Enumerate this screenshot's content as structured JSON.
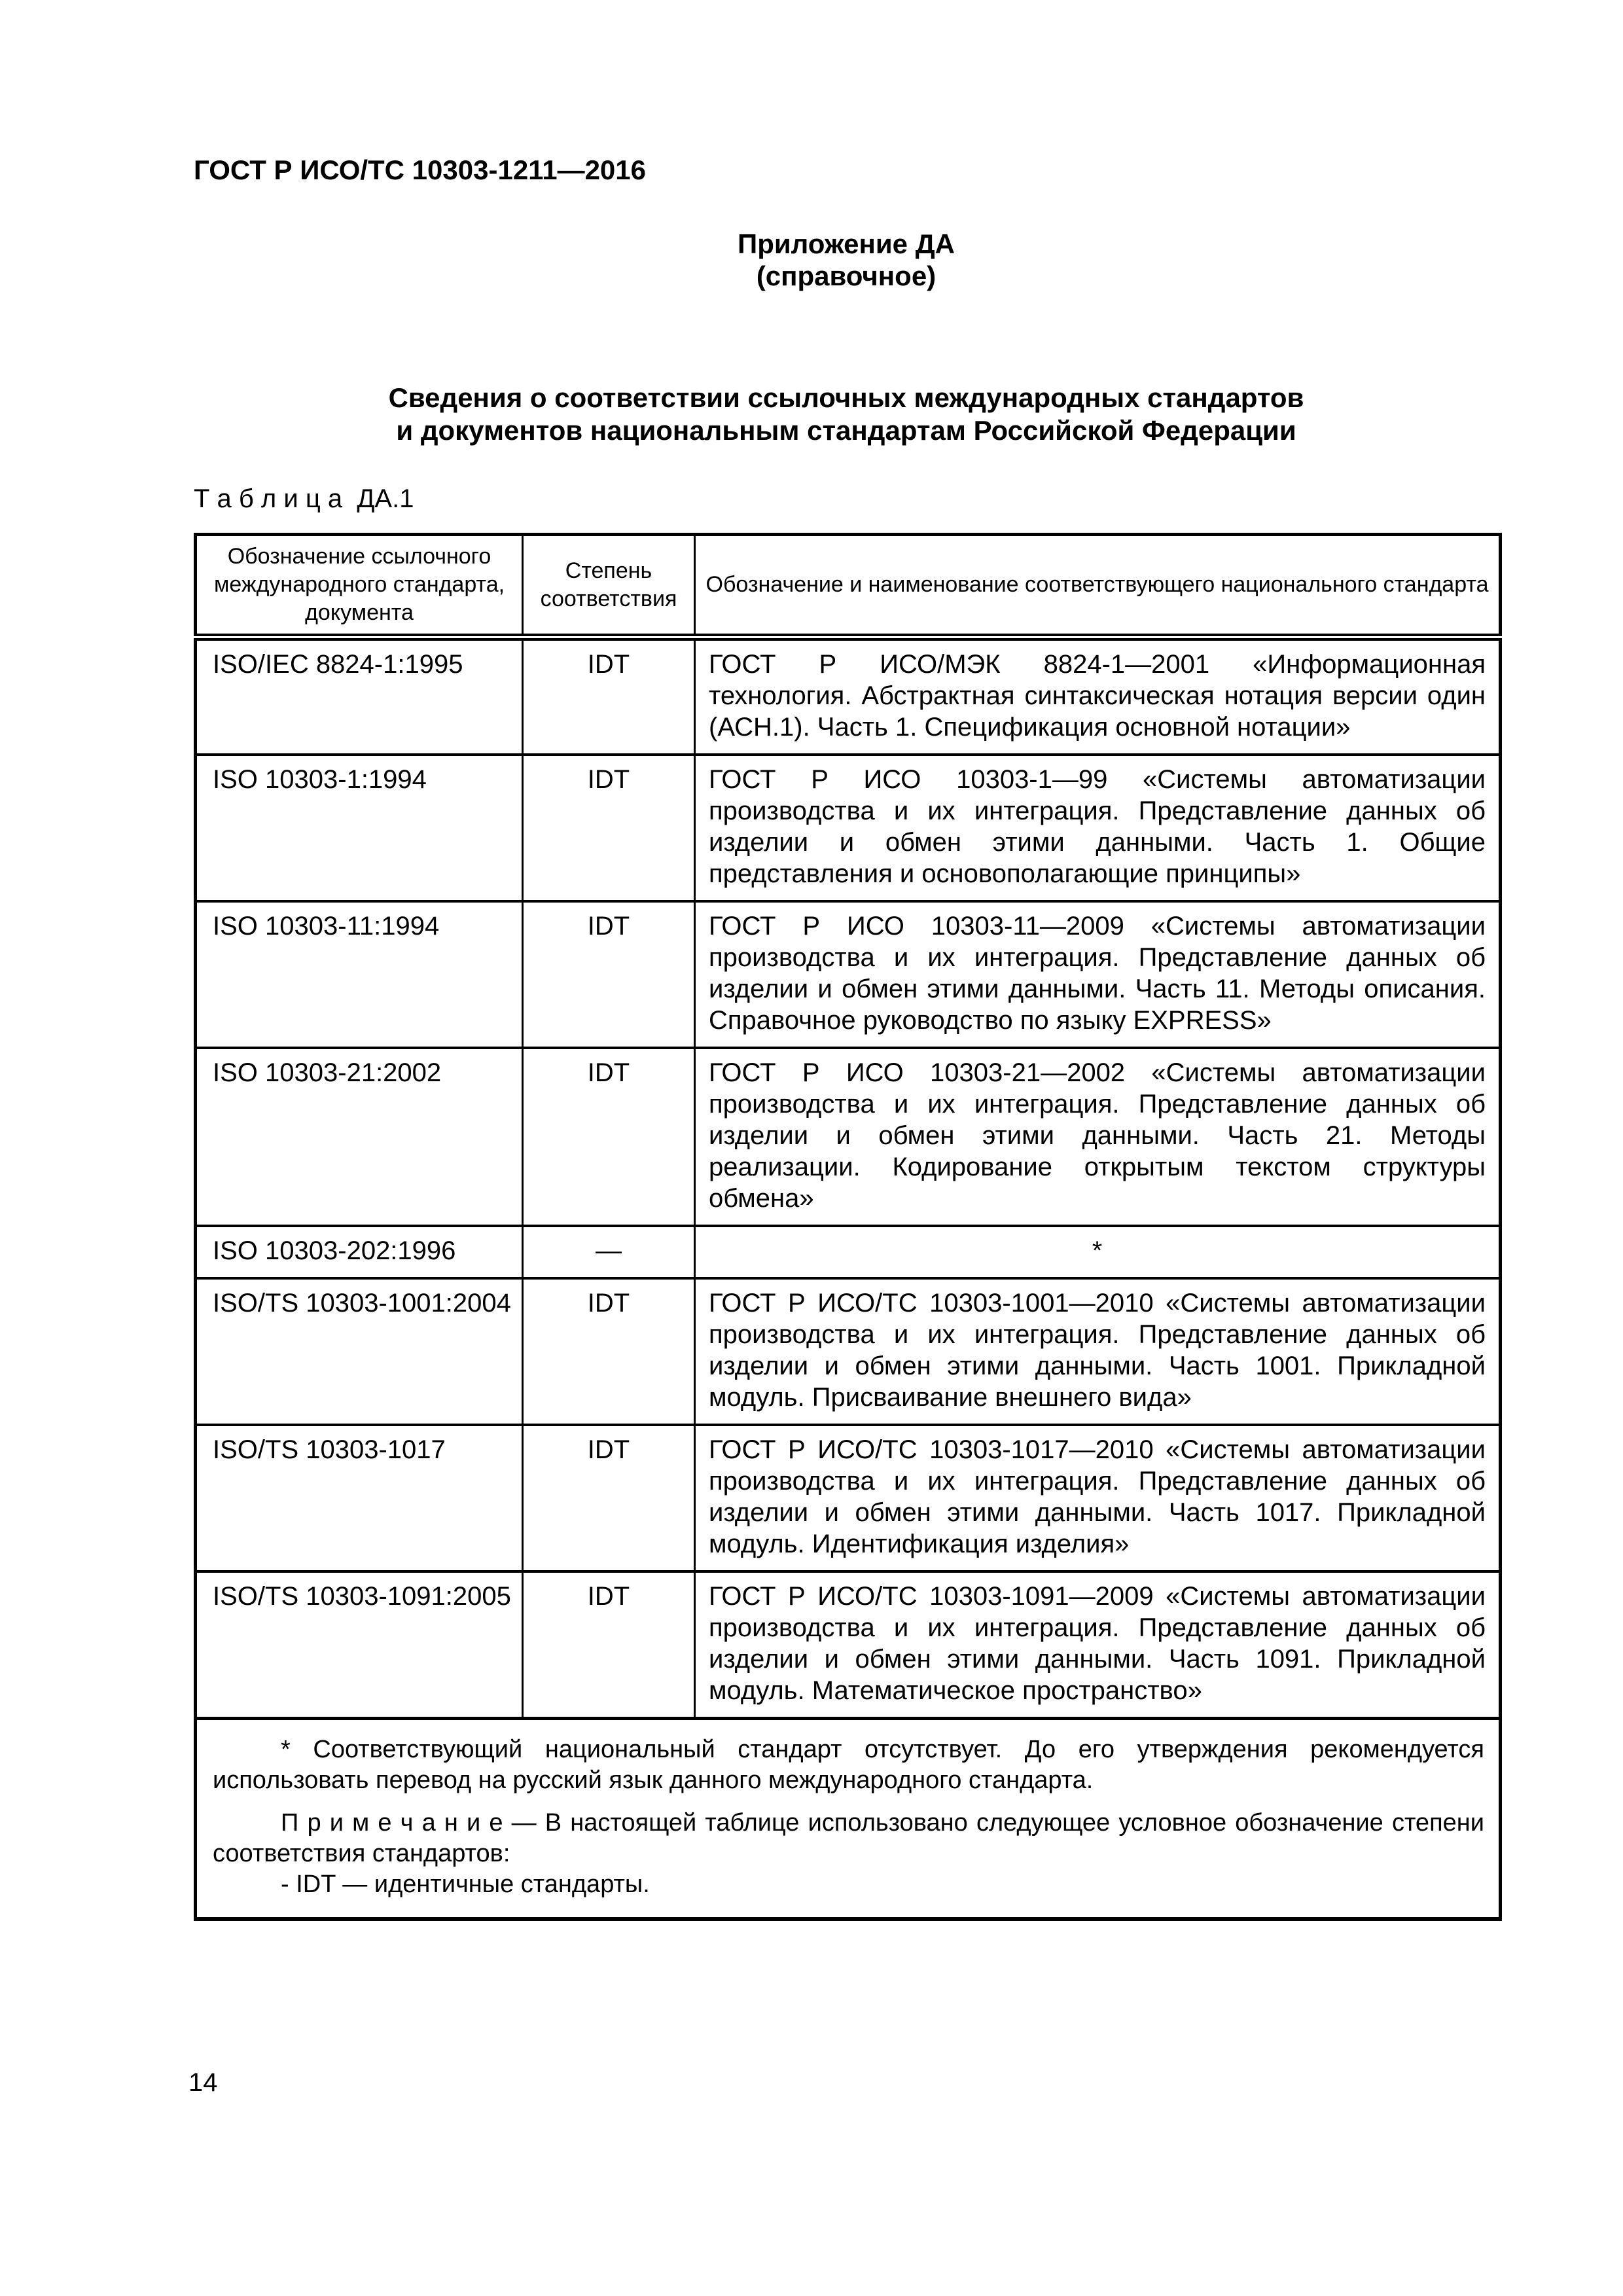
{
  "page": {
    "doc_number": "ГОСТ Р ИСО/ТС 10303-1211—2016",
    "appendix_line1": "Приложение ДА",
    "appendix_line2": "(справочное)",
    "title": "Сведения о соответствии ссылочных международных стандартов\nи документов национальным стандартам Российской Федерации",
    "table_caption": "Т а б л и ц а  ДА.1",
    "page_number": "14"
  },
  "table": {
    "headers": [
      "Обозначение ссылочного международного стандарта, документа",
      "Степень соответствия",
      "Обозначение и наименование соответствующего национального стандарта"
    ],
    "rows": [
      {
        "ref": "ISO/IEC 8824-1:1995",
        "degree": "IDT",
        "national": "ГОСТ Р ИСО/МЭК 8824-1—2001 «Информационная технология. Абстрактная синтаксическая нотация версии один (АСН.1). Часть 1. Спецификация основной нотации»"
      },
      {
        "ref": "ISO 10303-1:1994",
        "degree": "IDT",
        "national": "ГОСТ Р ИСО 10303-1—99 «Системы автоматизации производства и их интеграция. Представление данных об изделии и обмен этими данными. Часть 1. Общие представления и основополагающие прин­ципы»"
      },
      {
        "ref": "ISO 10303-11:1994",
        "degree": "IDT",
        "national": "ГОСТ Р ИСО 10303-11—2009 «Системы автоматизации производ­ства и их интеграция. Представление данных об изделии и обмен этими данными. Часть 11. Методы описания. Справочное руковод­ство по языку EXPRESS»"
      },
      {
        "ref": "ISO 10303-21:2002",
        "degree": "IDT",
        "national": "ГОСТ Р ИСО 10303-21—2002 «Системы автоматизации производ­ства и их интеграция. Представление данных об изделии и обмен этими данными. Часть 21. Методы реализации. Кодирование откры­тым текстом структуры обмена»"
      },
      {
        "ref": "ISO 10303-202:1996",
        "degree": "—",
        "national": "*",
        "national_align": "center"
      },
      {
        "ref": "ISO/TS 10303-1001:2004",
        "degree": "IDT",
        "national": "ГОСТ Р ИСО/ТС 10303-1001—2010 «Системы автоматизации произ­водства и их интеграция. Представление данных об изделии и об­мен этими данными. Часть 1001. Прикладной модуль. Присваивание внешнего вида»"
      },
      {
        "ref": "ISO/TS 10303-1017",
        "degree": "IDT",
        "national": "ГОСТ Р ИСО/ТС 10303-1017—2010 «Системы автоматизации произ­водства и их интеграция. Представление данных об изделии и обмен этими данными. Часть 1017. Прикладной модуль. Идентификация изделия»"
      },
      {
        "ref": "ISO/TS 10303-1091:2005",
        "degree": "IDT",
        "national": "ГОСТ Р ИСО/ТС 10303-1091—2009 «Системы автоматизации произ­водства и их интеграция. Представление данных об изделии и обмен этими данными. Часть 1091. Прикладной модуль. Математическое пространство»"
      }
    ],
    "footnote": {
      "asterisk_note": "* Соответствующий национальный стандарт отсутствует. До его утверждения рекомендуется использовать перевод на русский язык данного международного стандарта.",
      "note": "П р и м е ч а н и е  — В настоящей таблице использовано следующее условное обозначение степени со­ответствия стандартов:",
      "note_item": "- IDT — идентичные стандарты."
    }
  }
}
